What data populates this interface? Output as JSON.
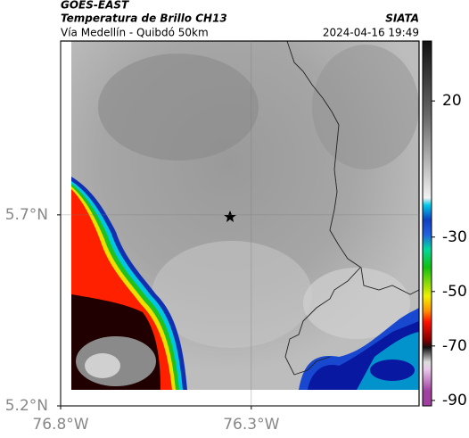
{
  "header": {
    "title": "GOES-EAST",
    "subtitle": "Temperatura de Brillo CH13",
    "caption": "Vía Medellín - Quibdó 50km",
    "source": "SIATA",
    "timestamp": "2024-04-16 19:49"
  },
  "map": {
    "xlim": [
      -76.8,
      -75.86
    ],
    "ylim": [
      5.2,
      6.155
    ],
    "xticks": [
      {
        "value": -76.8,
        "label": "76.8°W"
      },
      {
        "value": -76.3,
        "label": "76.3°W"
      }
    ],
    "yticks": [
      {
        "value": 5.2,
        "label": "5.2°N"
      },
      {
        "value": 5.7,
        "label": "5.7°N"
      }
    ],
    "grid": true
  },
  "colorbar": {
    "lim": [
      -92,
      42
    ],
    "ticks": [
      20,
      -30,
      -50,
      -70,
      -90
    ]
  }
}
